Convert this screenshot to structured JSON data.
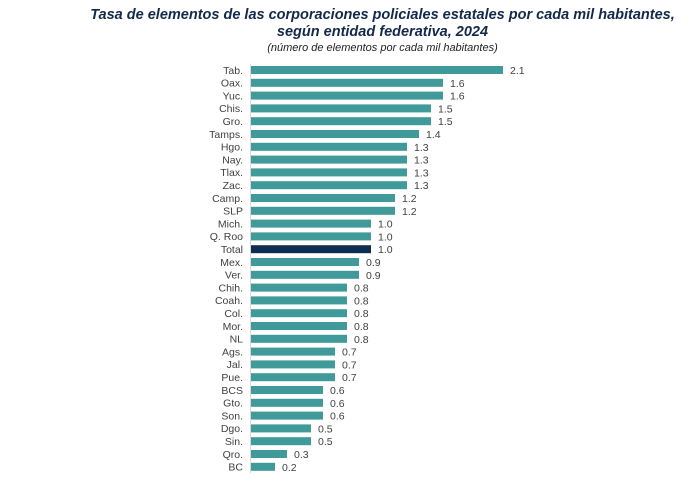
{
  "chart_data": {
    "type": "bar",
    "orientation": "horizontal",
    "title": "Tasa de elementos de las corporaciones policiales estatales por cada mil habitantes,",
    "title_line2": "según entidad federativa, 2024",
    "subtitle": "(número de elementos por cada mil habitantes)",
    "xlabel": "",
    "ylabel": "",
    "xlim": [
      0,
      2.1
    ],
    "grid": false,
    "legend": "none",
    "categories": [
      "Tab.",
      "Oax.",
      "Yuc.",
      "Chis.",
      "Gro.",
      "Tamps.",
      "Hgo.",
      "Nay.",
      "Tlax.",
      "Zac.",
      "Camp.",
      "SLP",
      "Mich.",
      "Q. Roo",
      "Total",
      "Mex.",
      "Ver.",
      "Chih.",
      "Coah.",
      "Col.",
      "Mor.",
      "NL",
      "Ags.",
      "Jal.",
      "Pue.",
      "BCS",
      "Gto.",
      "Son.",
      "Dgo.",
      "Sin.",
      "Qro.",
      "BC"
    ],
    "values": [
      2.1,
      1.6,
      1.6,
      1.5,
      1.5,
      1.4,
      1.3,
      1.3,
      1.3,
      1.3,
      1.2,
      1.2,
      1.0,
      1.0,
      1.0,
      0.9,
      0.9,
      0.8,
      0.8,
      0.8,
      0.8,
      0.8,
      0.7,
      0.7,
      0.7,
      0.6,
      0.6,
      0.6,
      0.5,
      0.5,
      0.3,
      0.2
    ],
    "value_labels": [
      "2.1",
      "1.6",
      "1.6",
      "1.5",
      "1.5",
      "1.4",
      "1.3",
      "1.3",
      "1.3",
      "1.3",
      "1.2",
      "1.2",
      "1.0",
      "1.0",
      "1.0",
      "0.9",
      "0.9",
      "0.8",
      "0.8",
      "0.8",
      "0.8",
      "0.8",
      "0.7",
      "0.7",
      "0.7",
      "0.6",
      "0.6",
      "0.6",
      "0.5",
      "0.5",
      "0.3",
      "0.2"
    ],
    "highlight_category": "Total",
    "colors": {
      "bar": "#409a9a",
      "highlight": "#0d2d52",
      "title": "#13294b",
      "axis": "#d9d9d9"
    }
  }
}
